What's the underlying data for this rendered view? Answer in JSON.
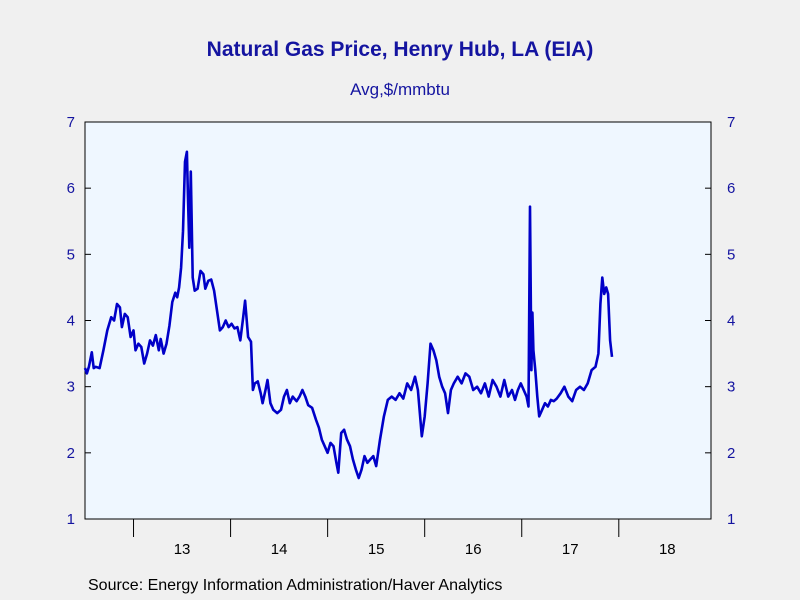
{
  "chart_data": {
    "type": "line",
    "title": "Natural Gas Price, Henry Hub, LA (EIA)",
    "subtitle": "Avg,$/mmbtu",
    "source": "Source:  Energy Information Administration/Haver Analytics",
    "ylim": [
      1,
      7
    ],
    "yticks": [
      1,
      2,
      3,
      4,
      5,
      6,
      7
    ],
    "xlim": [
      2012.5,
      2018.95
    ],
    "year_labels": [
      {
        "year": 2013,
        "label": "13"
      },
      {
        "year": 2014,
        "label": "14"
      },
      {
        "year": 2015,
        "label": "15"
      },
      {
        "year": 2016,
        "label": "16"
      },
      {
        "year": 2017,
        "label": "17"
      },
      {
        "year": 2018,
        "label": "18"
      }
    ],
    "grid": false,
    "series": [
      {
        "color": "#0000c8",
        "points": [
          [
            2012.5,
            3.28
          ],
          [
            2012.52,
            3.2
          ],
          [
            2012.54,
            3.3
          ],
          [
            2012.57,
            3.52
          ],
          [
            2012.59,
            3.28
          ],
          [
            2012.61,
            3.3
          ],
          [
            2012.65,
            3.28
          ],
          [
            2012.69,
            3.55
          ],
          [
            2012.73,
            3.85
          ],
          [
            2012.77,
            4.05
          ],
          [
            2012.8,
            4.0
          ],
          [
            2012.83,
            4.25
          ],
          [
            2012.86,
            4.2
          ],
          [
            2012.88,
            3.9
          ],
          [
            2012.91,
            4.1
          ],
          [
            2012.94,
            4.05
          ],
          [
            2012.97,
            3.75
          ],
          [
            2013.0,
            3.85
          ],
          [
            2013.02,
            3.55
          ],
          [
            2013.05,
            3.65
          ],
          [
            2013.08,
            3.6
          ],
          [
            2013.11,
            3.35
          ],
          [
            2013.14,
            3.5
          ],
          [
            2013.17,
            3.7
          ],
          [
            2013.2,
            3.62
          ],
          [
            2013.23,
            3.78
          ],
          [
            2013.26,
            3.55
          ],
          [
            2013.28,
            3.72
          ],
          [
            2013.31,
            3.5
          ],
          [
            2013.34,
            3.65
          ],
          [
            2013.37,
            3.92
          ],
          [
            2013.4,
            4.28
          ],
          [
            2013.43,
            4.42
          ],
          [
            2013.45,
            4.35
          ],
          [
            2013.47,
            4.5
          ],
          [
            2013.49,
            4.8
          ],
          [
            2013.51,
            5.35
          ],
          [
            2013.53,
            6.4
          ],
          [
            2013.55,
            6.55
          ],
          [
            2013.56,
            5.9
          ],
          [
            2013.575,
            5.1
          ],
          [
            2013.59,
            6.25
          ],
          [
            2013.61,
            4.65
          ],
          [
            2013.63,
            4.45
          ],
          [
            2013.66,
            4.48
          ],
          [
            2013.69,
            4.75
          ],
          [
            2013.72,
            4.7
          ],
          [
            2013.74,
            4.48
          ],
          [
            2013.77,
            4.6
          ],
          [
            2013.8,
            4.62
          ],
          [
            2013.83,
            4.45
          ],
          [
            2013.86,
            4.15
          ],
          [
            2013.89,
            3.85
          ],
          [
            2013.92,
            3.9
          ],
          [
            2013.95,
            4.0
          ],
          [
            2013.98,
            3.9
          ],
          [
            2014.01,
            3.95
          ],
          [
            2014.04,
            3.88
          ],
          [
            2014.07,
            3.9
          ],
          [
            2014.1,
            3.7
          ],
          [
            2014.13,
            4.05
          ],
          [
            2014.15,
            4.3
          ],
          [
            2014.18,
            3.75
          ],
          [
            2014.21,
            3.68
          ],
          [
            2014.23,
            2.95
          ],
          [
            2014.25,
            3.05
          ],
          [
            2014.28,
            3.08
          ],
          [
            2014.31,
            2.9
          ],
          [
            2014.33,
            2.75
          ],
          [
            2014.36,
            2.95
          ],
          [
            2014.38,
            3.1
          ],
          [
            2014.41,
            2.75
          ],
          [
            2014.44,
            2.65
          ],
          [
            2014.48,
            2.6
          ],
          [
            2014.52,
            2.65
          ],
          [
            2014.55,
            2.85
          ],
          [
            2014.58,
            2.95
          ],
          [
            2014.61,
            2.75
          ],
          [
            2014.64,
            2.85
          ],
          [
            2014.68,
            2.78
          ],
          [
            2014.71,
            2.85
          ],
          [
            2014.74,
            2.95
          ],
          [
            2014.77,
            2.85
          ],
          [
            2014.8,
            2.72
          ],
          [
            2014.84,
            2.68
          ],
          [
            2014.88,
            2.5
          ],
          [
            2014.91,
            2.38
          ],
          [
            2014.94,
            2.2
          ],
          [
            2014.97,
            2.1
          ],
          [
            2015.0,
            2.0
          ],
          [
            2015.03,
            2.15
          ],
          [
            2015.06,
            2.1
          ],
          [
            2015.09,
            1.85
          ],
          [
            2015.11,
            1.7
          ],
          [
            2015.14,
            2.3
          ],
          [
            2015.17,
            2.35
          ],
          [
            2015.2,
            2.2
          ],
          [
            2015.23,
            2.1
          ],
          [
            2015.26,
            1.9
          ],
          [
            2015.29,
            1.75
          ],
          [
            2015.32,
            1.62
          ],
          [
            2015.35,
            1.75
          ],
          [
            2015.38,
            1.95
          ],
          [
            2015.41,
            1.85
          ],
          [
            2015.44,
            1.9
          ],
          [
            2015.47,
            1.95
          ],
          [
            2015.5,
            1.8
          ],
          [
            2015.54,
            2.2
          ],
          [
            2015.58,
            2.55
          ],
          [
            2015.62,
            2.8
          ],
          [
            2015.66,
            2.85
          ],
          [
            2015.7,
            2.8
          ],
          [
            2015.74,
            2.9
          ],
          [
            2015.78,
            2.82
          ],
          [
            2015.82,
            3.05
          ],
          [
            2015.86,
            2.95
          ],
          [
            2015.9,
            3.15
          ],
          [
            2015.93,
            2.95
          ],
          [
            2015.97,
            2.25
          ],
          [
            2016.0,
            2.55
          ],
          [
            2016.03,
            3.05
          ],
          [
            2016.06,
            3.65
          ],
          [
            2016.09,
            3.55
          ],
          [
            2016.12,
            3.4
          ],
          [
            2016.15,
            3.15
          ],
          [
            2016.18,
            3.0
          ],
          [
            2016.21,
            2.9
          ],
          [
            2016.24,
            2.6
          ],
          [
            2016.27,
            2.95
          ],
          [
            2016.3,
            3.05
          ],
          [
            2016.34,
            3.15
          ],
          [
            2016.38,
            3.05
          ],
          [
            2016.42,
            3.2
          ],
          [
            2016.46,
            3.15
          ],
          [
            2016.5,
            2.95
          ],
          [
            2016.54,
            3.0
          ],
          [
            2016.58,
            2.9
          ],
          [
            2016.62,
            3.05
          ],
          [
            2016.66,
            2.85
          ],
          [
            2016.7,
            3.1
          ],
          [
            2016.74,
            3.0
          ],
          [
            2016.78,
            2.85
          ],
          [
            2016.82,
            3.1
          ],
          [
            2016.86,
            2.85
          ],
          [
            2016.9,
            2.95
          ],
          [
            2016.93,
            2.8
          ],
          [
            2016.96,
            2.95
          ],
          [
            2016.99,
            3.05
          ],
          [
            2017.02,
            2.95
          ],
          [
            2017.05,
            2.85
          ],
          [
            2017.07,
            2.7
          ],
          [
            2017.085,
            5.72
          ],
          [
            2017.1,
            3.25
          ],
          [
            2017.11,
            4.12
          ],
          [
            2017.12,
            3.55
          ],
          [
            2017.14,
            3.25
          ],
          [
            2017.16,
            2.85
          ],
          [
            2017.18,
            2.55
          ],
          [
            2017.21,
            2.65
          ],
          [
            2017.24,
            2.75
          ],
          [
            2017.27,
            2.7
          ],
          [
            2017.3,
            2.8
          ],
          [
            2017.33,
            2.78
          ],
          [
            2017.36,
            2.82
          ],
          [
            2017.4,
            2.9
          ],
          [
            2017.44,
            3.0
          ],
          [
            2017.48,
            2.85
          ],
          [
            2017.52,
            2.78
          ],
          [
            2017.56,
            2.95
          ],
          [
            2017.6,
            3.0
          ],
          [
            2017.64,
            2.95
          ],
          [
            2017.68,
            3.05
          ],
          [
            2017.72,
            3.25
          ],
          [
            2017.76,
            3.3
          ],
          [
            2017.79,
            3.5
          ],
          [
            2017.81,
            4.25
          ],
          [
            2017.83,
            4.65
          ],
          [
            2017.85,
            4.4
          ],
          [
            2017.87,
            4.5
          ],
          [
            2017.89,
            4.4
          ],
          [
            2017.91,
            3.7
          ],
          [
            2017.93,
            3.45
          ]
        ]
      }
    ]
  }
}
